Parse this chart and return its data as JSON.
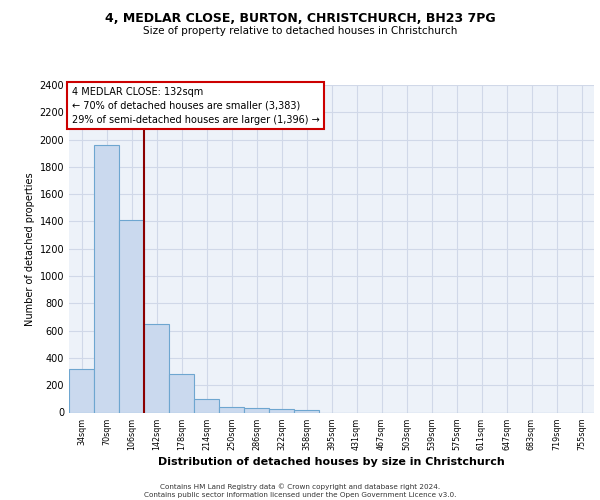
{
  "title1": "4, MEDLAR CLOSE, BURTON, CHRISTCHURCH, BH23 7PG",
  "title2": "Size of property relative to detached houses in Christchurch",
  "xlabel": "Distribution of detached houses by size in Christchurch",
  "ylabel": "Number of detached properties",
  "bar_color": "#cad9ee",
  "bar_edge_color": "#6ea6d0",
  "categories": [
    "34sqm",
    "70sqm",
    "106sqm",
    "142sqm",
    "178sqm",
    "214sqm",
    "250sqm",
    "286sqm",
    "322sqm",
    "358sqm",
    "395sqm",
    "431sqm",
    "467sqm",
    "503sqm",
    "539sqm",
    "575sqm",
    "611sqm",
    "647sqm",
    "683sqm",
    "719sqm",
    "755sqm"
  ],
  "values": [
    320,
    1960,
    1410,
    650,
    280,
    100,
    40,
    35,
    25,
    15,
    0,
    0,
    0,
    0,
    0,
    0,
    0,
    0,
    0,
    0,
    0
  ],
  "red_line_x": 2.5,
  "annotation_text": "4 MEDLAR CLOSE: 132sqm\n← 70% of detached houses are smaller (3,383)\n29% of semi-detached houses are larger (1,396) →",
  "ylim": [
    0,
    2400
  ],
  "yticks": [
    0,
    200,
    400,
    600,
    800,
    1000,
    1200,
    1400,
    1600,
    1800,
    2000,
    2200,
    2400
  ],
  "footer1": "Contains HM Land Registry data © Crown copyright and database right 2024.",
  "footer2": "Contains public sector information licensed under the Open Government Licence v3.0.",
  "background_color": "#edf2f9",
  "grid_color": "#d0d8e8"
}
